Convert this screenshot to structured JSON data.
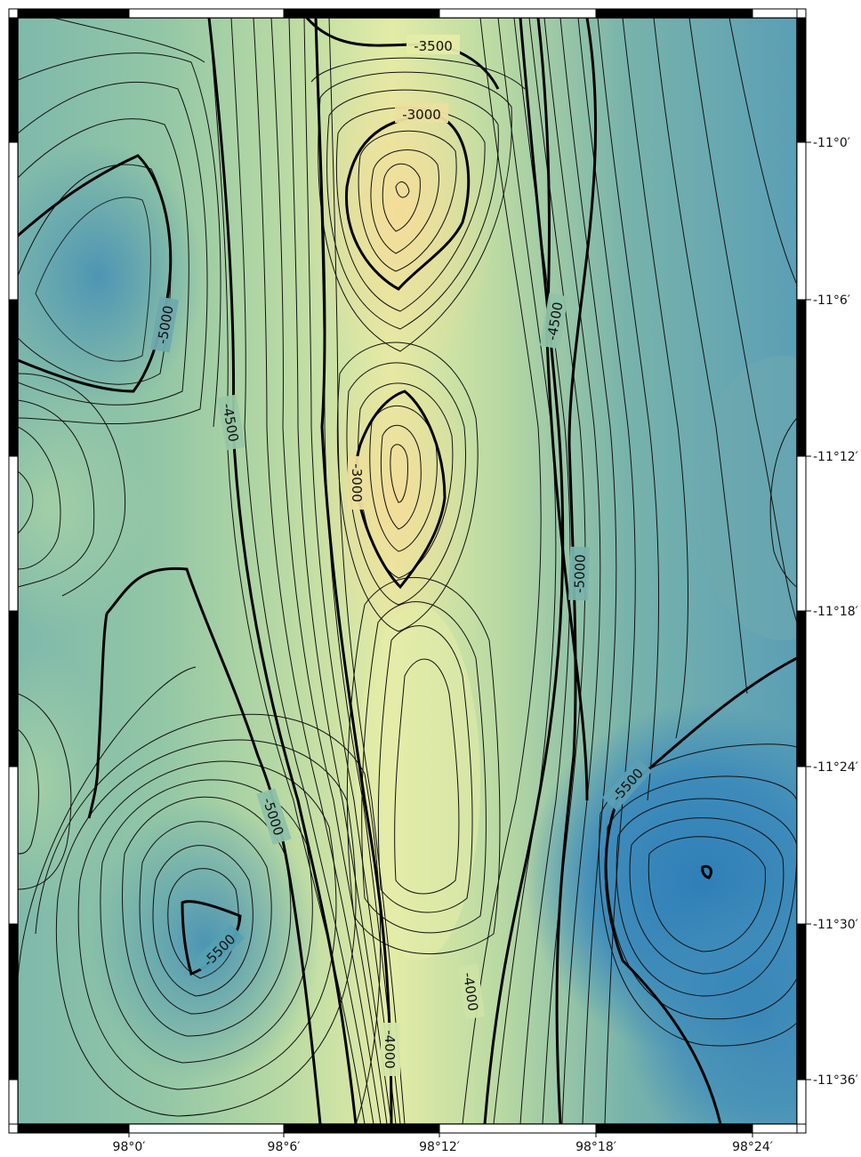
{
  "map": {
    "type": "bathymetric-contour-map",
    "colors": {
      "deep": "#2f7fb8",
      "mid_deep": "#5fa3b4",
      "mid": "#86c0a8",
      "shallow": "#d6e8a6",
      "shallowest": "#f0dc98",
      "contour": "#111111",
      "frame_black": "#000000",
      "frame_white": "#ffffff"
    },
    "contour_interval": 100,
    "index_contour_interval": 500,
    "longitude_ticks": [
      "98°0′",
      "98°6′",
      "98°12′",
      "98°18′",
      "98°24′"
    ],
    "latitude_ticks": [
      "-11°0′",
      "-11°6′",
      "-11°12′",
      "-11°18′",
      "-11°24′",
      "-11°30′",
      "-11°36′"
    ],
    "contour_labels": [
      {
        "id": "label-3500-top",
        "text": "-3500"
      },
      {
        "id": "label-3000-top",
        "text": "-3000"
      },
      {
        "id": "label-4500-right",
        "text": "-4500"
      },
      {
        "id": "label-5000-left",
        "text": "-5000"
      },
      {
        "id": "label-4500-left",
        "text": "-4500"
      },
      {
        "id": "label-3000-mid",
        "text": "-3000"
      },
      {
        "id": "label-5000-right",
        "text": "-5000"
      },
      {
        "id": "label-5500-right",
        "text": "-5500"
      },
      {
        "id": "label-5000-lower",
        "text": "-5000"
      },
      {
        "id": "label-5500-left",
        "text": "-5500"
      },
      {
        "id": "label-4000-right",
        "text": "-4000"
      },
      {
        "id": "label-4000-bottom",
        "text": "-4000"
      }
    ]
  }
}
